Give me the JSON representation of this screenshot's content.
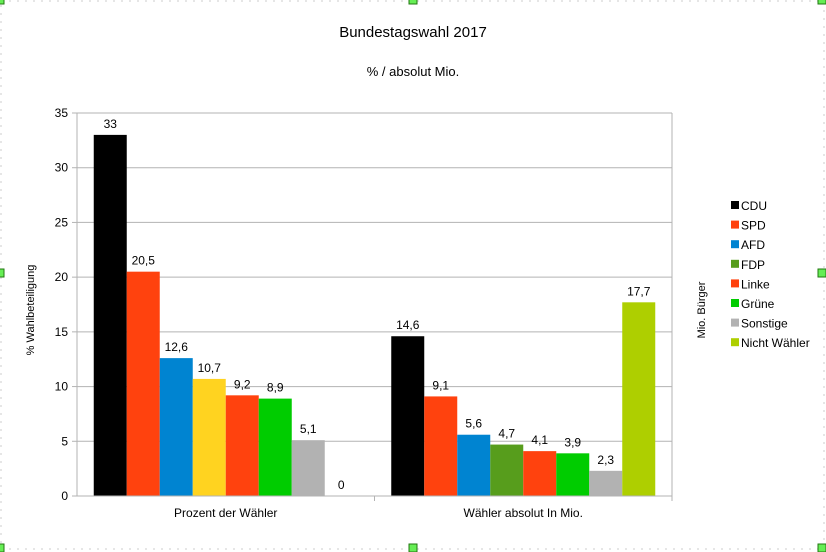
{
  "chart_data": {
    "type": "bar",
    "title": "Bundestagswahl 2017",
    "subtitle": "% / absolut Mio.",
    "ylabel": "% Wahlbeteiligung",
    "y2label": "Mio. Bürger",
    "xlabel": "",
    "ylim": [
      0,
      35
    ],
    "yticks": [
      0,
      5,
      10,
      15,
      20,
      25,
      30,
      35
    ],
    "grid": true,
    "legend_position": "right",
    "categories": [
      "Prozent der Wähler",
      "Wähler absolut In Mio."
    ],
    "series": [
      {
        "name": "CDU",
        "values": [
          33,
          14.6
        ],
        "labels": [
          "33",
          "14,6"
        ],
        "color": "#000000"
      },
      {
        "name": "SPD",
        "values": [
          20.5,
          9.1
        ],
        "labels": [
          "20,5",
          "9,1"
        ],
        "color": "#ff420e"
      },
      {
        "name": "AFD",
        "values": [
          12.6,
          5.6
        ],
        "labels": [
          "12,6",
          "5,6"
        ],
        "color": "#0084d1"
      },
      {
        "name": "FDP",
        "values": [
          10.7,
          4.7
        ],
        "labels": [
          "10,7",
          "4,7"
        ],
        "color": "#579d1c",
        "point_colors": [
          "#ffd320",
          "#579d1c"
        ]
      },
      {
        "name": "Linke",
        "values": [
          9.2,
          4.1
        ],
        "labels": [
          "9,2",
          "4,1"
        ],
        "color": "#ff420e"
      },
      {
        "name": "Grüne",
        "values": [
          8.9,
          3.9
        ],
        "labels": [
          "8,9",
          "3,9"
        ],
        "color": "#00cc00"
      },
      {
        "name": "Sonstige",
        "values": [
          5.1,
          2.3
        ],
        "labels": [
          "5,1",
          "2,3"
        ],
        "color": "#b2b2b2"
      },
      {
        "name": "Nicht Wähler",
        "values": [
          0,
          17.7
        ],
        "labels": [
          "0",
          "17,7"
        ],
        "color": "#aecf00"
      }
    ]
  }
}
